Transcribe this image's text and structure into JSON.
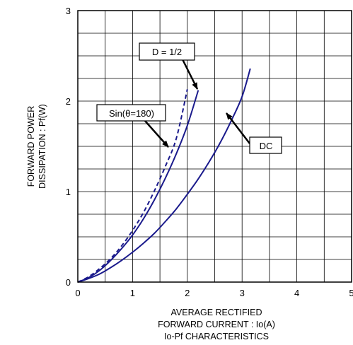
{
  "chart_data": {
    "type": "line",
    "title": "",
    "subtitle": "Io-Pf CHARACTERISTICS",
    "xlabel_lines": [
      "AVERAGE RECTIFIED",
      "FORWARD CURRENT : Io(A)"
    ],
    "ylabel_lines": [
      "FORWARD POWER",
      "DISSIPATION : Pf(W)"
    ],
    "xlim": [
      0,
      5
    ],
    "ylim": [
      0,
      3
    ],
    "x_ticks": [
      "0",
      "1",
      "2",
      "3",
      "4",
      "5"
    ],
    "y_ticks": [
      "0",
      "1",
      "2",
      "3"
    ],
    "grid": true,
    "line_color": "#1a1a8c",
    "series": [
      {
        "name": "D = 1/2",
        "style": "dashed",
        "x": [
          0,
          0.2,
          0.4,
          0.6,
          0.8,
          1.0,
          1.2,
          1.4,
          1.6,
          1.8,
          2.0
        ],
        "y": [
          0,
          0.06,
          0.15,
          0.26,
          0.4,
          0.57,
          0.77,
          1.01,
          1.28,
          1.59,
          2.13
        ]
      },
      {
        "name": "Sin(θ=180)",
        "style": "solid",
        "x": [
          0,
          0.2,
          0.4,
          0.6,
          0.8,
          1.0,
          1.2,
          1.4,
          1.6,
          1.8,
          2.0,
          2.2
        ],
        "y": [
          0,
          0.05,
          0.13,
          0.24,
          0.37,
          0.52,
          0.7,
          0.91,
          1.15,
          1.42,
          1.73,
          2.12
        ]
      },
      {
        "name": "DC",
        "style": "solid",
        "x": [
          0,
          0.2,
          0.4,
          0.6,
          0.8,
          1.0,
          1.2,
          1.4,
          1.6,
          1.8,
          2.0,
          2.2,
          2.4,
          2.6,
          2.8,
          3.0,
          3.15
        ],
        "y": [
          0,
          0.04,
          0.09,
          0.16,
          0.24,
          0.33,
          0.43,
          0.54,
          0.67,
          0.81,
          0.97,
          1.14,
          1.33,
          1.54,
          1.78,
          2.05,
          2.36
        ]
      }
    ],
    "annotations": [
      {
        "text": "D = 1/2",
        "points_to": "D = 1/2"
      },
      {
        "text": "Sin(θ=180)",
        "points_to": "Sin(θ=180)"
      },
      {
        "text": "DC",
        "points_to": "DC"
      }
    ]
  }
}
